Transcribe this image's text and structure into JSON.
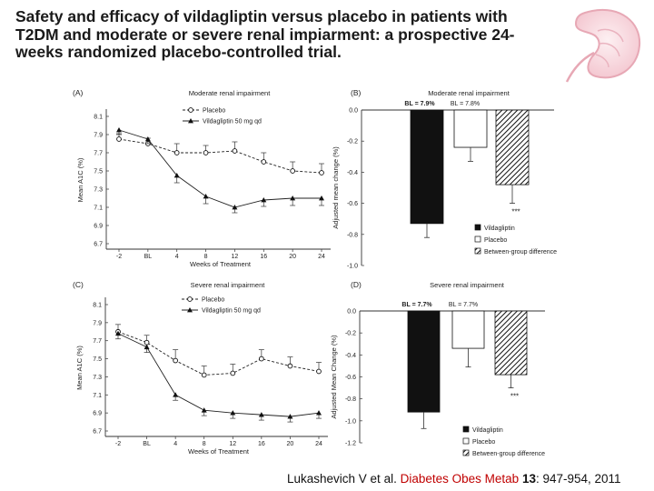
{
  "slide": {
    "title": "Safety and efficacy of vildagliptin versus placebo in patients with T2DM and moderate or severe renal impiarment: a prospective 24-weeks randomized placebo-controlled trial."
  },
  "citation": {
    "authors": "Lukashevich V et al.",
    "journal": "Diabetes Obes Metab",
    "volume": "13",
    "pages": ": 947-954, 2011"
  },
  "colors": {
    "title_text": "#1a1a1a",
    "journal_red": "#c00000",
    "bar_vildagliptin": "#111111",
    "kidney_outline": "#e7a8b5"
  },
  "chart_data": [
    {
      "panel": "(A)",
      "type": "line",
      "title": "Moderate renal impairment",
      "xlabel": "Weeks of Treatment",
      "ylabel": "Mean A1C (%)",
      "categories": [
        "-2",
        "BL",
        "4",
        "8",
        "12",
        "16",
        "20",
        "24"
      ],
      "yticks": [
        "8.1",
        "7.9",
        "7.7",
        "7.5",
        "7.3",
        "7.1",
        "6.9",
        "6.7"
      ],
      "ylim": [
        6.7,
        8.1
      ],
      "legend": [
        "Placebo",
        "Vildagliptin 50 mg qd"
      ],
      "series": [
        {
          "name": "Placebo",
          "marker": "open-circle",
          "values": [
            7.85,
            7.8,
            7.7,
            7.7,
            7.72,
            7.6,
            7.5,
            7.48
          ],
          "err": [
            0.06,
            0.06,
            0.1,
            0.08,
            0.1,
            0.1,
            0.1,
            0.1
          ]
        },
        {
          "name": "Vildagliptin 50 mg qd",
          "marker": "filled-triangle",
          "values": [
            7.95,
            7.85,
            7.45,
            7.22,
            7.1,
            7.18,
            7.2,
            7.2
          ],
          "err": [
            0.05,
            0.05,
            0.08,
            0.08,
            0.06,
            0.07,
            0.08,
            0.08
          ]
        }
      ]
    },
    {
      "panel": "(B)",
      "type": "bar",
      "title": "Moderate renal impairment",
      "ylabel": "Adjusted mean change (%)",
      "yticks": [
        "0.0",
        "-0.2",
        "-0.4",
        "-0.6",
        "-0.8",
        "-1.0"
      ],
      "ylim": [
        -1.0,
        0.0
      ],
      "baseline_labels": [
        "BL = 7.9%",
        "BL = 7.8%"
      ],
      "categories": [
        "Vildagliptin",
        "Placebo",
        "Between-group difference"
      ],
      "values": [
        -0.73,
        -0.24,
        -0.48
      ],
      "err": [
        0.09,
        0.09,
        0.12
      ],
      "annotation": "***",
      "legend": [
        "Vildagliptin",
        "Placebo",
        "Between-group difference"
      ]
    },
    {
      "panel": "(C)",
      "type": "line",
      "title": "Severe renal impairment",
      "xlabel": "Weeks of Treatment",
      "ylabel": "Mean A1C (%)",
      "categories": [
        "-2",
        "BL",
        "4",
        "8",
        "12",
        "16",
        "20",
        "24"
      ],
      "yticks": [
        "8.1",
        "7.9",
        "7.7",
        "7.5",
        "7.3",
        "7.1",
        "6.9",
        "6.7"
      ],
      "ylim": [
        6.7,
        8.1
      ],
      "legend": [
        "Placebo",
        "Vildagliptin 50 mg qd"
      ],
      "series": [
        {
          "name": "Placebo",
          "marker": "open-circle",
          "values": [
            7.8,
            7.68,
            7.48,
            7.32,
            7.34,
            7.5,
            7.42,
            7.36
          ],
          "err": [
            0.08,
            0.08,
            0.12,
            0.1,
            0.1,
            0.1,
            0.1,
            0.1
          ]
        },
        {
          "name": "Vildagliptin 50 mg qd",
          "marker": "filled-triangle",
          "values": [
            7.78,
            7.63,
            7.1,
            6.93,
            6.9,
            6.88,
            6.86,
            6.9
          ],
          "err": [
            0.06,
            0.06,
            0.06,
            0.06,
            0.06,
            0.06,
            0.06,
            0.06
          ]
        }
      ]
    },
    {
      "panel": "(D)",
      "type": "bar",
      "title": "Severe renal impairment",
      "ylabel": "Adjusted Mean Change (%)",
      "yticks": [
        "0.0",
        "-0.2",
        "-0.4",
        "-0.6",
        "-0.8",
        "-1.0",
        "-1.2"
      ],
      "ylim": [
        -1.2,
        0.0
      ],
      "baseline_labels": [
        "BL = 7.7%",
        "BL = 7.7%"
      ],
      "categories": [
        "Vildagliptin",
        "Placebo",
        "Between-group difference"
      ],
      "values": [
        -0.92,
        -0.34,
        -0.58
      ],
      "err": [
        0.15,
        0.17,
        0.12
      ],
      "annotation": "***",
      "legend": [
        "Vildagliptin",
        "Placebo",
        "Between-group difference"
      ]
    }
  ]
}
